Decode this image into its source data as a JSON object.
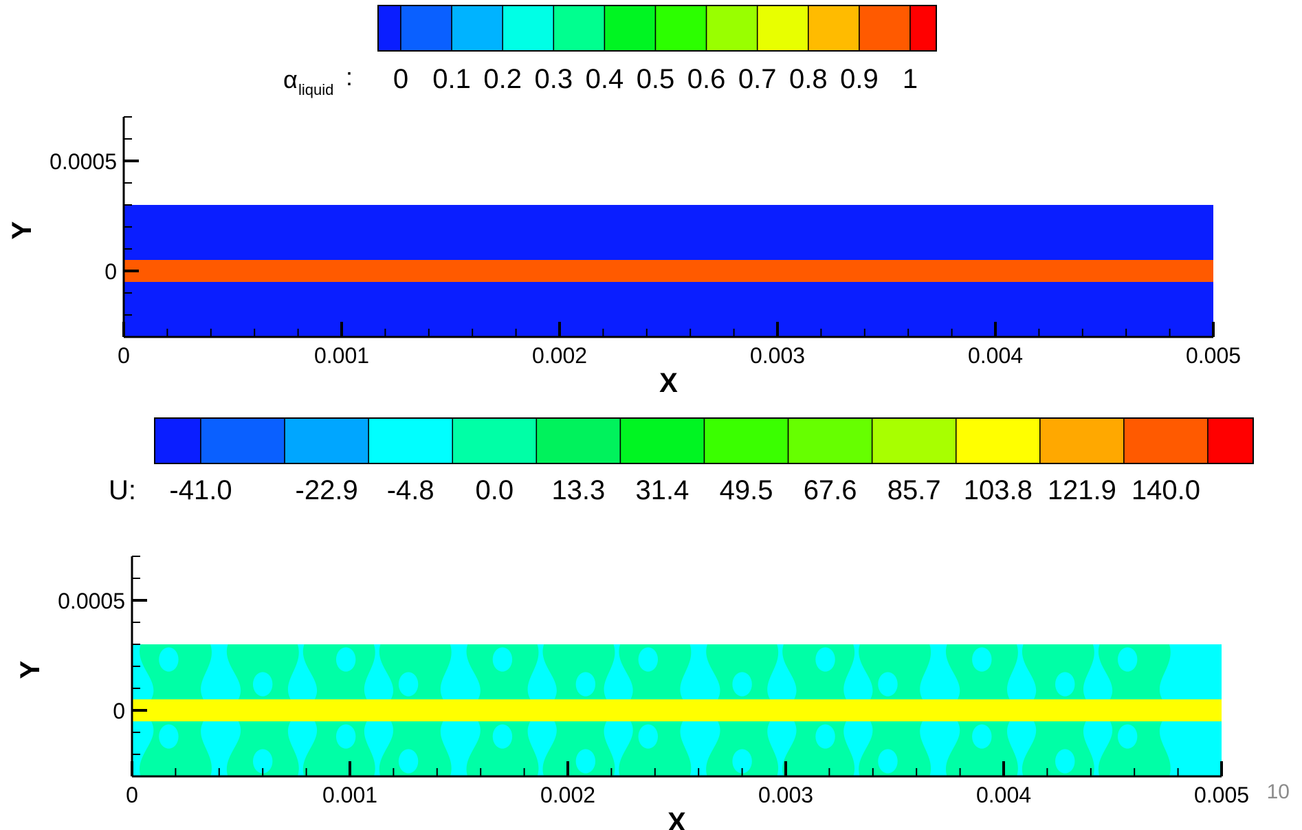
{
  "page_number": "10",
  "chart_data": [
    {
      "type": "heatmap",
      "variable": "alpha_liquid",
      "xlabel": "X",
      "ylabel": "Y",
      "xlim": [
        0,
        0.005
      ],
      "ylim": [
        -0.0003,
        0.0007
      ],
      "x_ticks": [
        0,
        0.001,
        0.002,
        0.003,
        0.004,
        0.005
      ],
      "x_tick_labels": [
        "0",
        "0.001",
        "0.002",
        "0.003",
        "0.004",
        "0.005"
      ],
      "y_ticks": [
        0,
        0.0005
      ],
      "y_tick_labels": [
        "0",
        "0.0005"
      ],
      "colorbar": {
        "label_symbol": "α",
        "label_subscript": "liquid",
        "label_suffix": ":",
        "levels": [
          0,
          0.1,
          0.2,
          0.3,
          0.4,
          0.5,
          0.6,
          0.7,
          0.8,
          0.9,
          1
        ],
        "level_labels": [
          "0",
          "0.1",
          "0.2",
          "0.3",
          "0.4",
          "0.5",
          "0.6",
          "0.7",
          "0.8",
          "0.9",
          "1"
        ],
        "colors": [
          "#0a1eff",
          "#0a60ff",
          "#00b3ff",
          "#00ffe6",
          "#00ff8f",
          "#00f522",
          "#2cff00",
          "#99ff00",
          "#e8ff00",
          "#ffbb00",
          "#ff5a00",
          "#ff0000"
        ]
      },
      "domain": {
        "x": [
          0,
          0.005
        ],
        "y": [
          -0.0003,
          0.0003
        ]
      },
      "regions": [
        {
          "y": [
            -0.0003,
            -5e-05
          ],
          "value": 0,
          "color": "#0a1eff"
        },
        {
          "y": [
            -5e-05,
            5e-05
          ],
          "value": 0.95,
          "color": "#ff5a00"
        },
        {
          "y": [
            5e-05,
            0.0003
          ],
          "value": 0,
          "color": "#0a1eff"
        }
      ]
    },
    {
      "type": "heatmap",
      "variable": "U",
      "xlabel": "X",
      "ylabel": "Y",
      "xlim": [
        0,
        0.005
      ],
      "ylim": [
        -0.0003,
        0.0007
      ],
      "x_ticks": [
        0,
        0.001,
        0.002,
        0.003,
        0.004,
        0.005
      ],
      "x_tick_labels": [
        "0",
        "0.001",
        "0.002",
        "0.003",
        "0.004",
        "0.005"
      ],
      "y_ticks": [
        0,
        0.0005
      ],
      "y_tick_labels": [
        "0",
        "0.0005"
      ],
      "colorbar": {
        "label": "U:",
        "levels": [
          -41.0,
          -22.9,
          -4.8,
          0.0,
          13.3,
          31.4,
          49.5,
          67.6,
          85.7,
          103.8,
          121.9,
          140.0
        ],
        "level_labels": [
          "-41.0",
          "-22.9",
          "-4.8",
          "0.0",
          "13.3",
          "31.4",
          "49.5",
          "67.6",
          "85.7",
          "103.8",
          "121.9",
          "140.0"
        ],
        "colors": [
          "#0a1eff",
          "#0a60ff",
          "#00a6ff",
          "#00ffff",
          "#00ffa6",
          "#00f25c",
          "#00f522",
          "#3aff00",
          "#66ff00",
          "#a8ff00",
          "#ffff00",
          "#ffa800",
          "#ff5a00",
          "#ff0000"
        ]
      },
      "domain": {
        "x": [
          0,
          0.005
        ],
        "y": [
          -0.0003,
          0.0003
        ]
      },
      "regions": [
        {
          "y": [
            -0.0003,
            -5e-05
          ],
          "value": "0.0 to 13.3 (mottled)",
          "colors": [
            "#00ffff",
            "#00ffa6"
          ]
        },
        {
          "y": [
            -5e-05,
            5e-05
          ],
          "value": "103.8 to 121.9",
          "color": "#ffff00"
        },
        {
          "y": [
            5e-05,
            0.0003
          ],
          "value": "0.0 to 13.3 (mottled)",
          "colors": [
            "#00ffff",
            "#00ffa6"
          ]
        }
      ],
      "pattern_x_centers": [
        0.0002,
        0.0006,
        0.00095,
        0.0013,
        0.0017,
        0.00205,
        0.0024,
        0.0028,
        0.00315,
        0.0035,
        0.0039,
        0.00425,
        0.0046
      ]
    }
  ]
}
